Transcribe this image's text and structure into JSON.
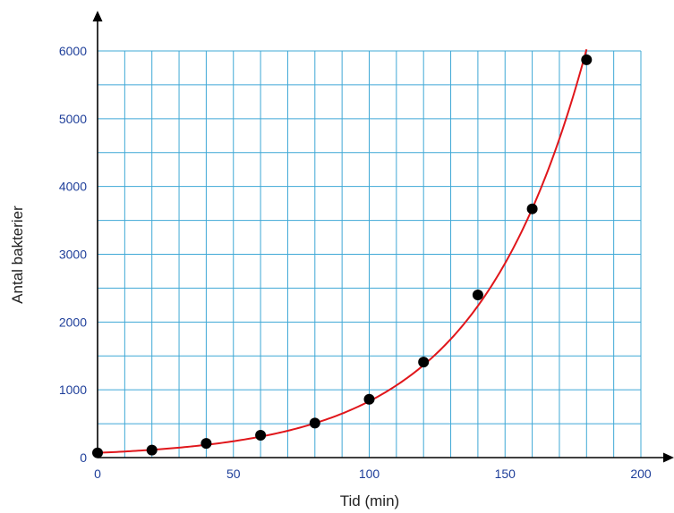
{
  "chart_data": {
    "type": "scatter",
    "xlabel": "Tid (min)",
    "ylabel": "Antal bakterier",
    "xlim": [
      0,
      200
    ],
    "ylim": [
      0,
      6000
    ],
    "x_ticks": [
      0,
      50,
      100,
      150,
      200
    ],
    "y_ticks": [
      0,
      1000,
      2000,
      3000,
      4000,
      5000,
      6000
    ],
    "x_minor_step": 10,
    "y_minor_step": 500,
    "grid": true,
    "series": [
      {
        "type": "scatter",
        "x": [
          0,
          20,
          40,
          60,
          80,
          100,
          120,
          140,
          160,
          180
        ],
        "y": [
          70,
          110,
          210,
          330,
          510,
          860,
          1410,
          2400,
          3670,
          5870
        ]
      },
      {
        "type": "line",
        "fit": "exponential",
        "x_range": [
          0,
          180
        ],
        "a": 70,
        "b": 0.02475
      }
    ],
    "colors": {
      "grid": "#3fa8d6",
      "axis": "#000000",
      "tick_label": "#1f3f9a",
      "curve": "#e0161b",
      "points": "#000000"
    }
  }
}
